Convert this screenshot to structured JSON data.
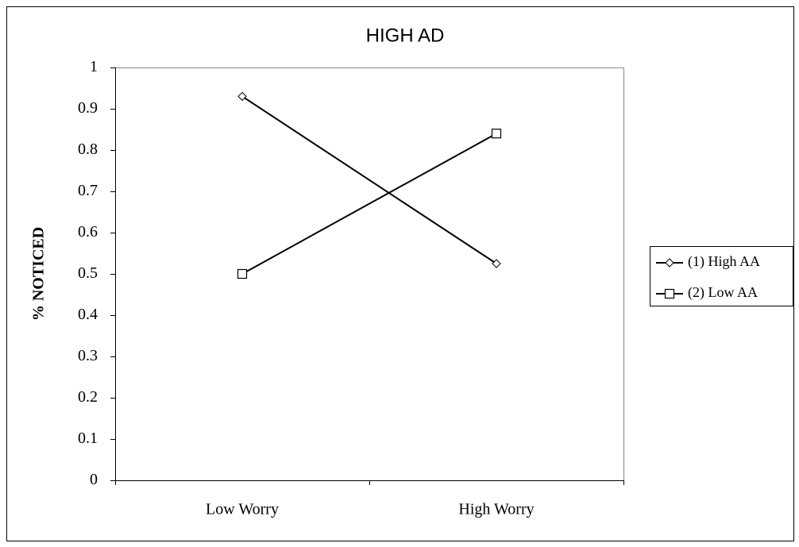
{
  "chart_data": {
    "type": "line",
    "title": "HIGH AD",
    "y_label": "% NOTICED",
    "categories": [
      "Low Worry",
      "High Worry"
    ],
    "series": [
      {
        "name": "(1) High AA",
        "color": "#000000",
        "marker": "diamond",
        "values": [
          0.93,
          0.525
        ]
      },
      {
        "name": "(2) Low AA",
        "color": "#000000",
        "marker": "square",
        "values": [
          0.5,
          0.84
        ]
      }
    ],
    "ylim": [
      0,
      1
    ],
    "yticks": [
      0,
      0.1,
      0.2,
      0.3,
      0.4,
      0.5,
      0.6,
      0.7,
      0.8,
      0.9,
      1
    ],
    "grid": false,
    "legend": "right"
  }
}
